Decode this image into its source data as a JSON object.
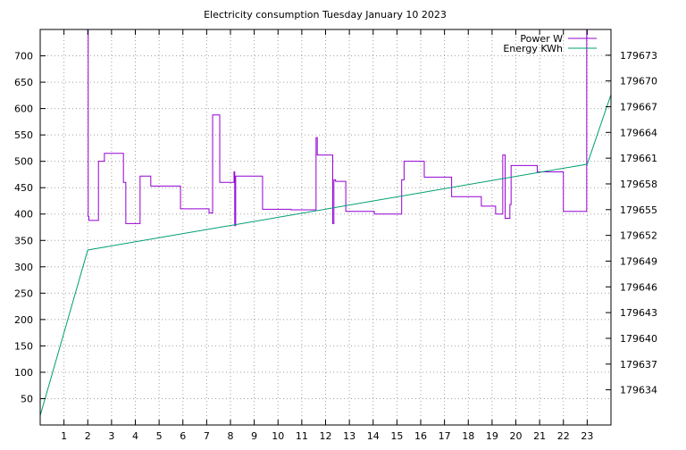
{
  "chart_data": {
    "type": "line",
    "title": "Electricity consumption Tuesday January 10 2023",
    "xlabel": "",
    "ylabel": "",
    "y2label": "",
    "grid": true,
    "legend_position": "top-right",
    "xlim": [
      0,
      24
    ],
    "xticks": [
      1,
      2,
      3,
      4,
      5,
      6,
      7,
      8,
      9,
      10,
      11,
      12,
      13,
      14,
      15,
      16,
      17,
      18,
      19,
      20,
      21,
      22,
      23
    ],
    "ylim": [
      0,
      750
    ],
    "yticks": [
      50,
      100,
      150,
      200,
      250,
      300,
      350,
      400,
      450,
      500,
      550,
      600,
      650,
      700
    ],
    "y2lim": [
      179629.9,
      179676.0
    ],
    "y2ticks": [
      179634,
      179637,
      179640,
      179643,
      179646,
      179649,
      179652,
      179655,
      179658,
      179661,
      179664,
      179667,
      179670,
      179673
    ],
    "colors": {
      "power": "#9400d3",
      "energy": "#009e73"
    },
    "series": [
      {
        "name": "Power W",
        "axis": "left",
        "color": "#9400d3",
        "x": [
          2.0,
          2.02,
          2.02,
          2.05,
          2.05,
          2.45,
          2.45,
          2.7,
          2.7,
          3.5,
          3.5,
          3.6,
          3.6,
          3.65,
          3.65,
          3.7,
          3.7,
          4.2,
          4.2,
          4.65,
          4.65,
          5.0,
          5.0,
          5.9,
          5.9,
          7.1,
          7.1,
          7.25,
          7.25,
          7.55,
          7.55,
          8.15,
          8.15,
          8.18,
          8.18,
          8.22,
          8.22,
          8.27,
          8.27,
          9.35,
          9.35,
          10.55,
          10.55,
          11.6,
          11.6,
          11.65,
          11.65,
          11.7,
          11.7,
          12.3,
          12.3,
          12.35,
          12.35,
          12.42,
          12.42,
          12.45,
          12.45,
          12.85,
          12.85,
          14.05,
          14.05,
          15.2,
          15.2,
          15.3,
          15.3,
          16.15,
          16.15,
          17.3,
          17.3,
          18.55,
          18.55,
          19.15,
          19.15,
          19.45,
          19.45,
          19.55,
          19.55,
          19.75,
          19.75,
          19.8,
          19.8,
          19.85,
          19.85,
          20.9,
          20.9,
          22.0,
          22.0,
          22.9,
          22.9,
          22.98,
          22.98,
          23.0
        ],
        "values": [
          750,
          750,
          395,
          395,
          388,
          388,
          500,
          500,
          515,
          515,
          460,
          460,
          382,
          382,
          382,
          382,
          382,
          382,
          472,
          472,
          453,
          453,
          453,
          453,
          410,
          410,
          402,
          402,
          588,
          588,
          460,
          460,
          480,
          480,
          378,
          378,
          472,
          472,
          472,
          472,
          409,
          409,
          408,
          408,
          545,
          545,
          512,
          512,
          512,
          512,
          382,
          382,
          465,
          465,
          462,
          462,
          462,
          462,
          405,
          405,
          400,
          400,
          465,
          465,
          500,
          500,
          470,
          470,
          433,
          433,
          415,
          415,
          400,
          400,
          512,
          512,
          392,
          392,
          418,
          418,
          492,
          492,
          492,
          492,
          480,
          480,
          405,
          405,
          405,
          405,
          750,
          750
        ]
      },
      {
        "name": "Energy KWh",
        "axis": "right",
        "color": "#009e73",
        "x": [
          0,
          2.0,
          23.0,
          24
        ],
        "values": [
          179631.0,
          179650.3,
          179660.3,
          179668.4
        ]
      }
    ]
  }
}
